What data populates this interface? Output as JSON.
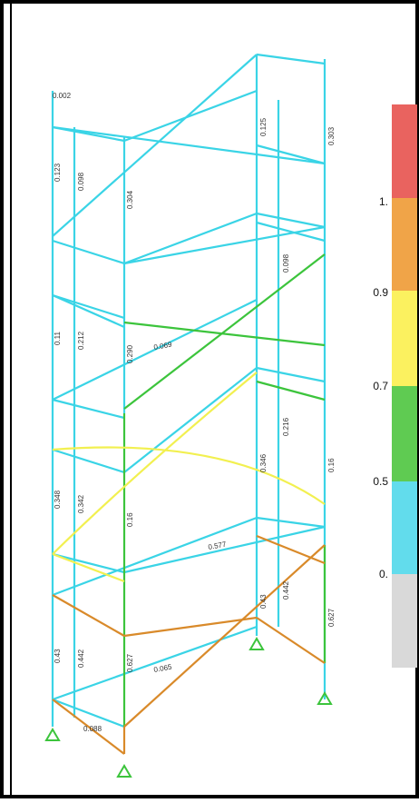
{
  "legend": {
    "labels": [
      "1.",
      "0.9",
      "0.7",
      "0.5",
      "0."
    ]
  },
  "member_labels": [
    "0.002",
    "0.123",
    "0.098",
    "0.304",
    "0.11",
    "0.212",
    "0.069",
    "0.290",
    "0.348",
    "0.342",
    "0.16",
    "0.43",
    "0.442",
    "0.627",
    "0.065",
    "0.088",
    "0.125",
    "0.303",
    "0.346",
    "0.216",
    "0.577",
    "0.098",
    "0.16",
    "0.43",
    "0.442",
    "0.627"
  ]
}
